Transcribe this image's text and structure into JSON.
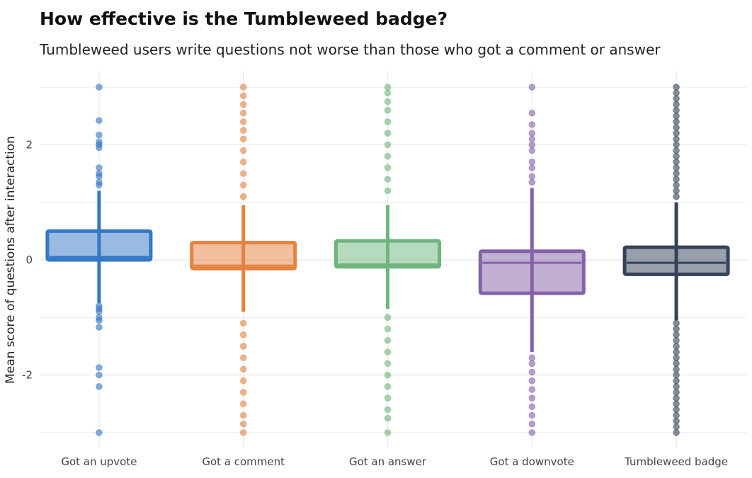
{
  "chart_data": {
    "type": "box",
    "title": "How effective is the Tumbleweed badge?",
    "subtitle": "Tumbleweed users write questions not worse than those who got a comment or answer",
    "xlabel": "",
    "ylabel": "Mean score of questions after interaction",
    "ylim": [
      -3.15,
      3.3
    ],
    "yticks": [
      -2,
      0,
      2
    ],
    "ytick_labels": [
      "-2",
      "0",
      "2"
    ],
    "grid": true,
    "categories": [
      "Got an upvote",
      "Got a comment",
      "Got an answer",
      "Got a downvote",
      "Tumbleweed badge"
    ],
    "colors": [
      "#3478c6",
      "#e5823f",
      "#6db57c",
      "#8562a8",
      "#34425a"
    ],
    "series": [
      {
        "q1": 0.0,
        "median": 0.05,
        "q3": 0.5,
        "whisker_low": -0.75,
        "whisker_high": 1.2,
        "outliers": [
          3.0,
          2.42,
          2.17,
          2.05,
          2.0,
          1.95,
          1.6,
          1.5,
          1.45,
          1.35,
          1.3,
          -0.8,
          -0.85,
          -0.9,
          -1.0,
          -1.05,
          -1.17,
          -1.87,
          -2.0,
          -2.2,
          -3.0
        ]
      },
      {
        "q1": -0.15,
        "median": -0.1,
        "q3": 0.3,
        "whisker_low": -0.9,
        "whisker_high": 0.95,
        "outliers": [
          3.0,
          2.85,
          2.7,
          2.55,
          2.4,
          2.25,
          2.1,
          1.9,
          1.7,
          1.5,
          1.3,
          1.1,
          -1.1,
          -1.3,
          -1.5,
          -1.7,
          -1.9,
          -2.1,
          -2.3,
          -2.5,
          -2.7,
          -2.85,
          -3.0
        ]
      },
      {
        "q1": -0.12,
        "median": -0.08,
        "q3": 0.33,
        "whisker_low": -0.85,
        "whisker_high": 0.95,
        "outliers": [
          3.0,
          2.9,
          2.75,
          2.6,
          2.4,
          2.2,
          2.0,
          1.8,
          1.6,
          1.4,
          1.2,
          -1.0,
          -1.2,
          -1.4,
          -1.6,
          -1.8,
          -2.0,
          -2.2,
          -2.4,
          -2.6,
          -2.75,
          -3.0
        ]
      },
      {
        "q1": -0.58,
        "median": -0.05,
        "q3": 0.15,
        "whisker_low": -1.6,
        "whisker_high": 1.25,
        "outliers": [
          3.0,
          2.55,
          2.35,
          2.2,
          2.1,
          2.0,
          1.9,
          1.7,
          1.6,
          1.45,
          1.35,
          -1.7,
          -1.8,
          -1.95,
          -2.1,
          -2.25,
          -2.4,
          -2.55,
          -2.7,
          -2.85,
          -3.0
        ]
      },
      {
        "q1": -0.25,
        "median": -0.05,
        "q3": 0.22,
        "whisker_low": -1.05,
        "whisker_high": 1.0,
        "outliers": [
          3.0,
          2.9,
          2.8,
          2.7,
          2.6,
          2.5,
          2.4,
          2.3,
          2.2,
          2.1,
          2.0,
          1.9,
          1.8,
          1.7,
          1.6,
          1.5,
          1.4,
          1.3,
          1.2,
          1.1,
          -1.1,
          -1.2,
          -1.3,
          -1.4,
          -1.5,
          -1.6,
          -1.7,
          -1.8,
          -1.9,
          -2.0,
          -2.1,
          -2.2,
          -2.3,
          -2.4,
          -2.5,
          -2.6,
          -2.7,
          -2.8,
          -2.9,
          -3.0
        ]
      }
    ]
  }
}
